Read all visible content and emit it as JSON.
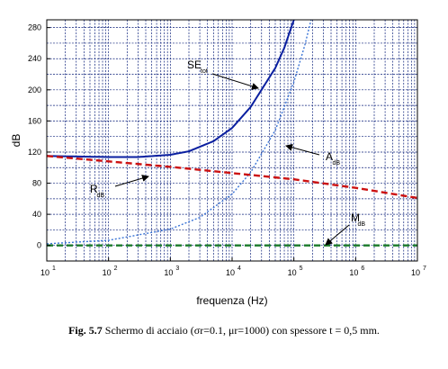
{
  "chart_data": {
    "type": "line",
    "xlabel": "frequenza (Hz)",
    "ylabel": "dB",
    "xscale": "log",
    "xlim": [
      10,
      10000000
    ],
    "ylim": [
      -20,
      290
    ],
    "x_ticks": [
      {
        "base": "10",
        "exp": "1"
      },
      {
        "base": "10",
        "exp": "2"
      },
      {
        "base": "10",
        "exp": "3"
      },
      {
        "base": "10",
        "exp": "4"
      },
      {
        "base": "10",
        "exp": "5"
      },
      {
        "base": "10",
        "exp": "6"
      },
      {
        "base": "10",
        "exp": "7"
      }
    ],
    "y_ticks": [
      0,
      40,
      80,
      120,
      160,
      200,
      240,
      280
    ],
    "grid": true,
    "series": [
      {
        "key": "SE",
        "label_main": "SE",
        "label_sub": "tot",
        "color": "#0a1fa0",
        "style": "solid",
        "x": [
          10,
          100,
          300,
          1000,
          2000,
          5000,
          10000,
          20000,
          50000,
          70000,
          100000,
          150000
        ],
        "y": [
          115,
          113.6,
          113.6,
          116.5,
          121,
          134,
          151,
          178,
          228,
          254,
          290,
          330
        ]
      },
      {
        "key": "A",
        "label_main": "A",
        "label_sub": "dB",
        "color": "#3a74d6",
        "style": "dotted",
        "x": [
          10,
          100,
          1000,
          3000,
          10000,
          20000,
          50000,
          100000,
          150000,
          200000,
          250000
        ],
        "y": [
          2.1,
          6.6,
          21,
          36,
          66,
          94,
          148,
          210,
          257,
          297,
          332
        ]
      },
      {
        "key": "R",
        "label_main": "R",
        "label_sub": "dB",
        "color": "#cc1111",
        "style": "dashed",
        "x": [
          10,
          100,
          1000,
          10000,
          100000,
          1000000,
          10000000
        ],
        "y": [
          115,
          108,
          101,
          93,
          85,
          74,
          61
        ]
      },
      {
        "key": "M",
        "label_main": "M",
        "label_sub": "dB",
        "color": "#1a7a2a",
        "style": "dashed",
        "x": [
          10,
          10000000
        ],
        "y": [
          0,
          0
        ]
      }
    ]
  },
  "caption": {
    "fig_label": "Fig. 5.7",
    "text": "Schermo di acciaio (σr=0.1, μr=1000) con spessore t = 0,5 mm."
  }
}
